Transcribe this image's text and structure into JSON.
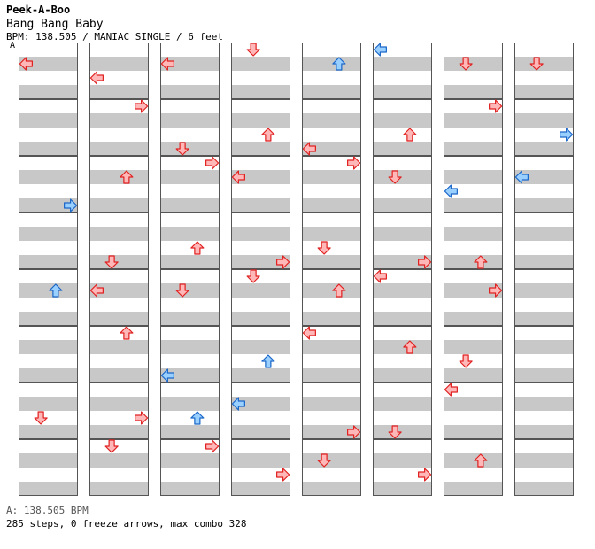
{
  "header": {
    "title": "Peek-A-Boo",
    "song": "Bang Bang Baby",
    "meta": "BPM: 138.505 / MANIAC SINGLE / 6 feet",
    "segment_label": "A"
  },
  "footer": {
    "bpm_line": "A: 138.505 BPM",
    "stats_line": "285 steps, 0 freeze arrows, max combo 328"
  },
  "colors": {
    "stripe": "#c8c8c8",
    "background": "#ffffff",
    "border": "#000000",
    "arrow_red_fill": "#ffb7b7",
    "arrow_red_stroke": "#e02020",
    "arrow_blue_fill": "#9ad0ff",
    "arrow_blue_stroke": "#1a66c8"
  },
  "chart_data": {
    "type": "step-chart",
    "columns": 8,
    "measures_per_column": 8,
    "lanes": [
      "left",
      "down",
      "up",
      "right"
    ],
    "note_colors": {
      "quarter": "red",
      "eighth": "blue"
    },
    "notes": [
      [
        0,
        0,
        0,
        1
      ],
      [
        0,
        2,
        3,
        3
      ],
      [
        0,
        4,
        2,
        1
      ],
      [
        0,
        6,
        1,
        2
      ],
      [
        1,
        0,
        0,
        2
      ],
      [
        1,
        1,
        3,
        0
      ],
      [
        1,
        2,
        2,
        1
      ],
      [
        1,
        3,
        1,
        3
      ],
      [
        1,
        4,
        0,
        1
      ],
      [
        1,
        5,
        2,
        0
      ],
      [
        1,
        6,
        3,
        2
      ],
      [
        1,
        7,
        1,
        0
      ],
      [
        2,
        0,
        0,
        1
      ],
      [
        2,
        1,
        1,
        3
      ],
      [
        2,
        2,
        3,
        0
      ],
      [
        2,
        3,
        2,
        2
      ],
      [
        2,
        4,
        1,
        1
      ],
      [
        2,
        5,
        0,
        3
      ],
      [
        2,
        6,
        2,
        2
      ],
      [
        2,
        7,
        3,
        0
      ],
      [
        3,
        0,
        1,
        0
      ],
      [
        3,
        1,
        2,
        2
      ],
      [
        3,
        2,
        0,
        1
      ],
      [
        3,
        3,
        3,
        3
      ],
      [
        3,
        4,
        1,
        0
      ],
      [
        3,
        5,
        2,
        2
      ],
      [
        3,
        6,
        0,
        1
      ],
      [
        3,
        7,
        3,
        2
      ],
      [
        4,
        0,
        2,
        1
      ],
      [
        4,
        1,
        0,
        3
      ],
      [
        4,
        2,
        3,
        0
      ],
      [
        4,
        3,
        1,
        2
      ],
      [
        4,
        4,
        2,
        1
      ],
      [
        4,
        5,
        0,
        0
      ],
      [
        4,
        6,
        3,
        3
      ],
      [
        4,
        7,
        1,
        1
      ],
      [
        5,
        0,
        0,
        0
      ],
      [
        5,
        1,
        2,
        2
      ],
      [
        5,
        2,
        1,
        1
      ],
      [
        5,
        3,
        3,
        3
      ],
      [
        5,
        4,
        0,
        0
      ],
      [
        5,
        5,
        2,
        1
      ],
      [
        5,
        6,
        1,
        3
      ],
      [
        5,
        7,
        3,
        2
      ],
      [
        6,
        0,
        1,
        1
      ],
      [
        6,
        1,
        3,
        0
      ],
      [
        6,
        2,
        0,
        2
      ],
      [
        6,
        3,
        2,
        3
      ],
      [
        6,
        4,
        3,
        1
      ],
      [
        6,
        5,
        1,
        2
      ],
      [
        6,
        6,
        0,
        0
      ],
      [
        6,
        7,
        2,
        1
      ],
      [
        7,
        0,
        1,
        1
      ],
      [
        7,
        1,
        3,
        2
      ],
      [
        7,
        2,
        0,
        1
      ]
    ]
  }
}
